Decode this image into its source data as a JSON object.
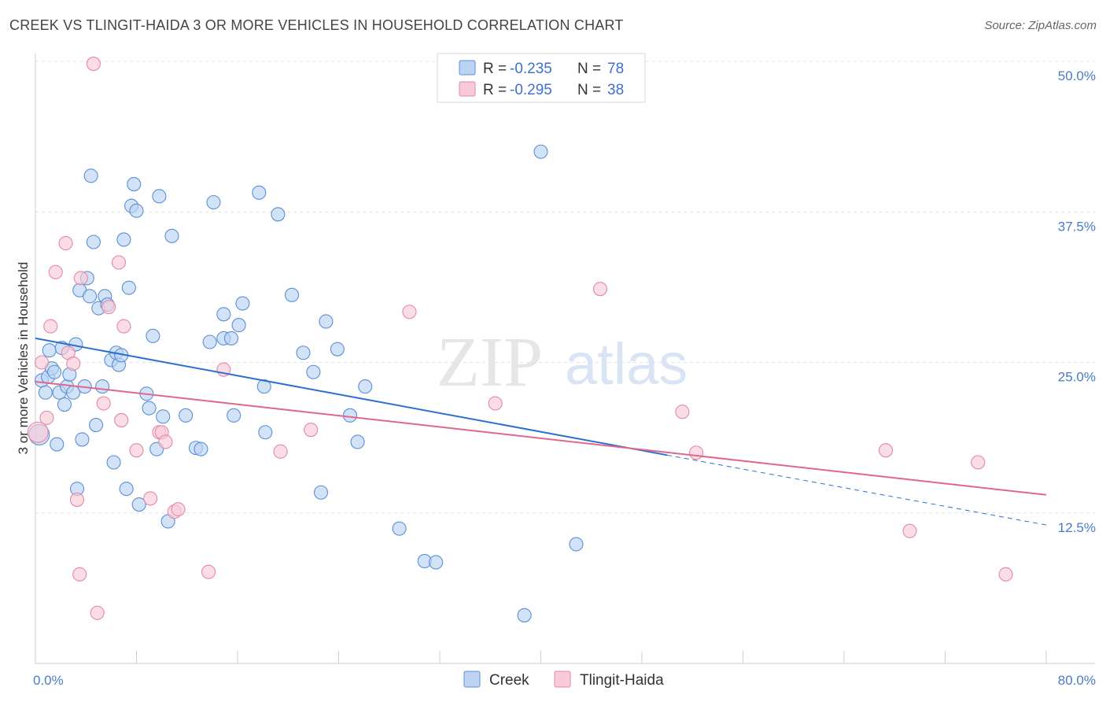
{
  "title": "CREEK VS TLINGIT-HAIDA 3 OR MORE VEHICLES IN HOUSEHOLD CORRELATION CHART",
  "source": "Source: ZipAtlas.com",
  "watermark": {
    "zip": "ZIP",
    "atlas": "atlas"
  },
  "legend": {
    "r_label": "R =",
    "n_label": "N =",
    "rows": [
      {
        "r": "-0.235",
        "n": "78"
      },
      {
        "r": "-0.295",
        "n": "38"
      }
    ]
  },
  "colors": {
    "creek_fill": "#bcd4f2",
    "creek_stroke": "#5b8fd6",
    "creek_line": "#2d6fd0",
    "tlingit_fill": "#f9cbd8",
    "tlingit_stroke": "#e587a6",
    "tlingit_line": "#e06690",
    "tick_text": "#4a7cc9",
    "grid": "#e2e2e2"
  },
  "chart_data": {
    "type": "scatter",
    "title": "CREEK VS TLINGIT-HAIDA 3 OR MORE VEHICLES IN HOUSEHOLD CORRELATION CHART",
    "xlabel": "",
    "ylabel": "3 or more Vehicles in Household",
    "xlim": [
      0,
      80
    ],
    "ylim": [
      0,
      50
    ],
    "x_tick_labels": [
      "0.0%",
      "80.0%"
    ],
    "y_tick_labels": [
      "12.5%",
      "25.0%",
      "37.5%",
      "50.0%"
    ],
    "y_ticks": [
      12.5,
      25,
      37.5,
      50
    ],
    "grid": true,
    "legend_position": "top-center",
    "series": [
      {
        "name": "Creek",
        "r": -0.235,
        "n": 78,
        "trend": {
          "x0": 0,
          "y0": 27.0,
          "x1": 50,
          "y1": 17.3,
          "dashed_to_x": 80,
          "dashed_to_y": 11.5
        },
        "points": [
          [
            0.3,
            19.0
          ],
          [
            0.5,
            23.5
          ],
          [
            0.8,
            22.5
          ],
          [
            1.0,
            23.8
          ],
          [
            1.1,
            26.0
          ],
          [
            1.3,
            24.5
          ],
          [
            1.5,
            24.2
          ],
          [
            1.7,
            18.2
          ],
          [
            1.9,
            22.5
          ],
          [
            2.1,
            26.2
          ],
          [
            2.3,
            21.5
          ],
          [
            2.5,
            23.0
          ],
          [
            2.7,
            24.0
          ],
          [
            3.0,
            22.5
          ],
          [
            3.2,
            26.5
          ],
          [
            3.3,
            14.5
          ],
          [
            3.5,
            31.0
          ],
          [
            3.7,
            18.6
          ],
          [
            3.9,
            23.0
          ],
          [
            4.1,
            32.0
          ],
          [
            4.3,
            30.5
          ],
          [
            4.4,
            40.5
          ],
          [
            4.6,
            35.0
          ],
          [
            4.8,
            19.8
          ],
          [
            5.0,
            29.5
          ],
          [
            5.3,
            23.0
          ],
          [
            5.5,
            30.5
          ],
          [
            5.7,
            29.8
          ],
          [
            6.0,
            25.2
          ],
          [
            6.2,
            16.7
          ],
          [
            6.4,
            25.8
          ],
          [
            6.6,
            24.8
          ],
          [
            6.8,
            25.6
          ],
          [
            7.0,
            35.2
          ],
          [
            7.2,
            14.5
          ],
          [
            7.4,
            31.2
          ],
          [
            7.6,
            38.0
          ],
          [
            7.8,
            39.8
          ],
          [
            8.0,
            37.6
          ],
          [
            8.2,
            13.2
          ],
          [
            8.8,
            22.4
          ],
          [
            9.0,
            21.2
          ],
          [
            9.3,
            27.2
          ],
          [
            9.6,
            17.8
          ],
          [
            9.8,
            38.8
          ],
          [
            10.1,
            20.5
          ],
          [
            10.5,
            11.8
          ],
          [
            10.8,
            35.5
          ],
          [
            11.9,
            20.6
          ],
          [
            12.7,
            17.9
          ],
          [
            13.1,
            17.8
          ],
          [
            13.8,
            26.7
          ],
          [
            14.1,
            38.3
          ],
          [
            14.9,
            27.0
          ],
          [
            14.9,
            29.0
          ],
          [
            15.5,
            27.0
          ],
          [
            15.7,
            20.6
          ],
          [
            16.1,
            28.1
          ],
          [
            16.4,
            29.9
          ],
          [
            17.7,
            39.1
          ],
          [
            18.1,
            23.0
          ],
          [
            18.2,
            19.2
          ],
          [
            19.2,
            37.3
          ],
          [
            20.3,
            30.6
          ],
          [
            21.2,
            25.8
          ],
          [
            22.0,
            24.2
          ],
          [
            22.6,
            14.2
          ],
          [
            23.0,
            28.4
          ],
          [
            23.9,
            26.1
          ],
          [
            24.9,
            20.6
          ],
          [
            25.5,
            18.4
          ],
          [
            26.1,
            23.0
          ],
          [
            28.8,
            11.2
          ],
          [
            30.8,
            8.5
          ],
          [
            31.7,
            8.4
          ],
          [
            38.7,
            4.0
          ],
          [
            40.0,
            42.5
          ],
          [
            42.8,
            9.9
          ]
        ]
      },
      {
        "name": "Tlingit-Haida",
        "r": -0.295,
        "n": 38,
        "trend": {
          "x0": 0,
          "y0": 23.4,
          "x1": 80,
          "y1": 14.0
        },
        "points": [
          [
            0.2,
            19.2
          ],
          [
            0.5,
            25.0
          ],
          [
            0.9,
            20.4
          ],
          [
            1.2,
            28.0
          ],
          [
            1.6,
            32.5
          ],
          [
            2.4,
            34.9
          ],
          [
            2.6,
            25.8
          ],
          [
            3.0,
            24.9
          ],
          [
            3.3,
            13.6
          ],
          [
            3.5,
            7.4
          ],
          [
            3.6,
            32.0
          ],
          [
            4.6,
            49.8
          ],
          [
            4.9,
            4.2
          ],
          [
            5.4,
            21.6
          ],
          [
            5.8,
            29.6
          ],
          [
            6.6,
            33.3
          ],
          [
            6.8,
            20.2
          ],
          [
            7.0,
            28.0
          ],
          [
            8.0,
            17.7
          ],
          [
            9.1,
            13.7
          ],
          [
            9.8,
            19.2
          ],
          [
            10.0,
            19.2
          ],
          [
            10.3,
            18.4
          ],
          [
            11.0,
            12.6
          ],
          [
            11.3,
            12.8
          ],
          [
            13.7,
            7.6
          ],
          [
            14.9,
            24.4
          ],
          [
            19.4,
            17.6
          ],
          [
            21.8,
            19.4
          ],
          [
            29.6,
            29.2
          ],
          [
            36.4,
            21.6
          ],
          [
            44.7,
            31.1
          ],
          [
            51.2,
            20.9
          ],
          [
            52.3,
            17.5
          ],
          [
            67.3,
            17.7
          ],
          [
            69.2,
            11.0
          ],
          [
            74.6,
            16.7
          ],
          [
            76.8,
            7.4
          ]
        ]
      }
    ]
  },
  "bottom_legend": {
    "items": [
      "Creek",
      "Tlingit-Haida"
    ]
  }
}
